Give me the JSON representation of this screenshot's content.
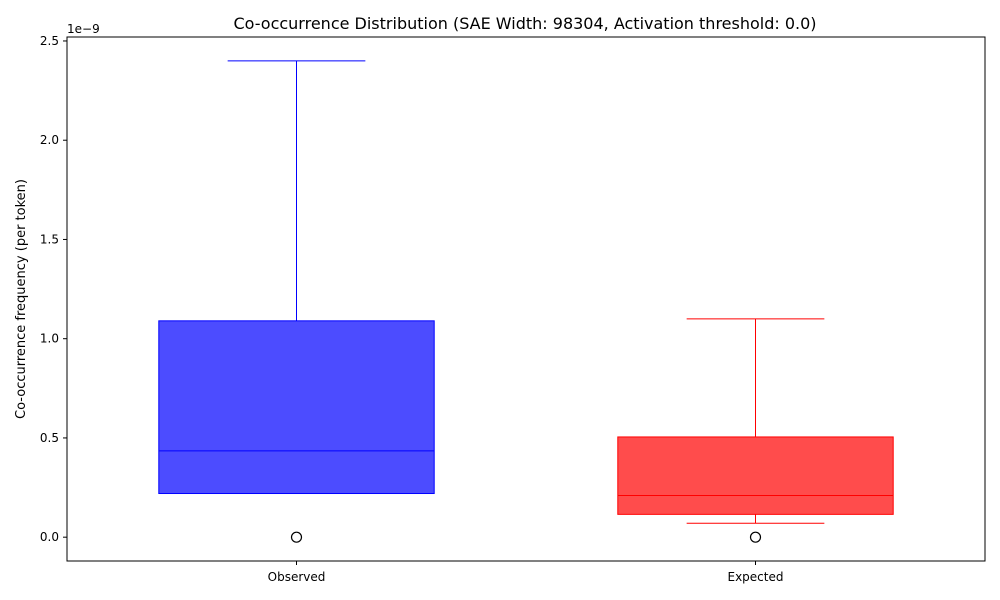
{
  "chart_data": {
    "type": "box",
    "title": "Co-occurrence Distribution (SAE Width: 98304, Activation threshold: 0.0)",
    "xlabel": "",
    "ylabel": "Co-occurrence frequency (per token)",
    "y_offset_label": "1e−9",
    "y_scale": 1e-09,
    "ylim": [
      -0.12,
      2.52
    ],
    "yticks": [
      0.0,
      0.5,
      1.0,
      1.5,
      2.0,
      2.5
    ],
    "ytick_labels": [
      "0.0",
      "0.5",
      "1.0",
      "1.5",
      "2.0",
      "2.5"
    ],
    "categories": [
      "Observed",
      "Expected"
    ],
    "boxes": [
      {
        "name": "Observed",
        "color": "#0000ff",
        "fill": "#0000ff",
        "fill_opacity": 0.7,
        "whisker_low": 0.22,
        "q1": 0.22,
        "median": 0.435,
        "q3": 1.09,
        "whisker_high": 2.4,
        "outliers": [
          0.0
        ]
      },
      {
        "name": "Expected",
        "color": "#ff0000",
        "fill": "#ff0000",
        "fill_opacity": 0.7,
        "whisker_low": 0.07,
        "q1": 0.115,
        "median": 0.21,
        "q3": 0.505,
        "whisker_high": 1.1,
        "outliers": [
          0.0
        ]
      }
    ],
    "grid": false,
    "legend": "none"
  }
}
